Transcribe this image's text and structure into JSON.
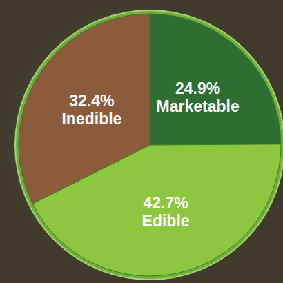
{
  "chart_data": {
    "type": "pie",
    "categories": [
      "Marketable",
      "Edible",
      "Inedible"
    ],
    "values": [
      24.9,
      42.7,
      32.4
    ],
    "value_labels": [
      "24.9%",
      "42.7%",
      "32.4%"
    ],
    "colors": [
      "#2f6e33",
      "#8dc63f",
      "#8c5b3b"
    ],
    "data_labels": true
  }
}
